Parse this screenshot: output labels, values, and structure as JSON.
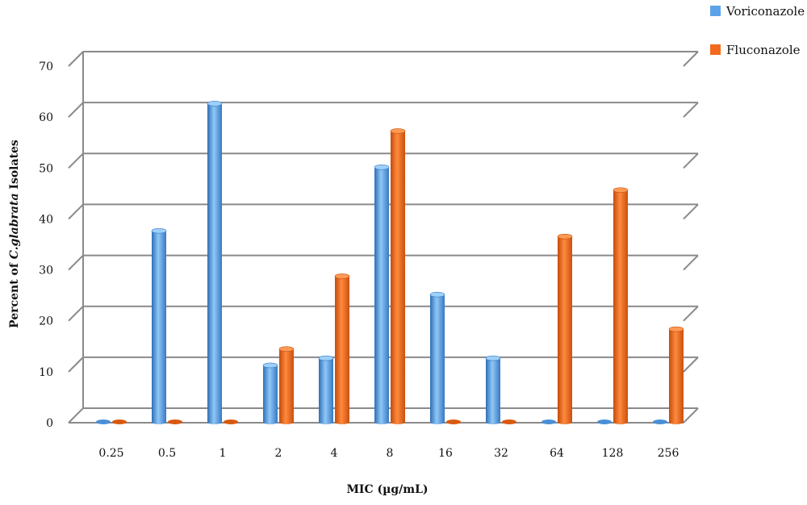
{
  "chart_data": {
    "type": "bar",
    "title": "",
    "xlabel": "MIC (µg/mL)",
    "ylabel_prefix": "Percent of ",
    "ylabel_italic": "C.glabrata",
    "ylabel_suffix": " Isolates",
    "ylim": [
      0,
      70
    ],
    "yticks": [
      "0",
      "10",
      "20",
      "30",
      "40",
      "50",
      "60",
      "70"
    ],
    "categories": [
      "0.25",
      "0.5",
      "1",
      "2",
      "4",
      "8",
      "16",
      "32",
      "64",
      "128",
      "256"
    ],
    "grid": true,
    "legend_position": "top-right",
    "series": [
      {
        "name": "Voriconazole",
        "color": "#5BA3E8",
        "values": [
          0,
          37.5,
          62.5,
          11.1,
          12.5,
          50,
          25,
          12.5,
          0,
          0,
          0
        ]
      },
      {
        "name": "Fluconazole",
        "color": "#F26A1B",
        "values": [
          0,
          0,
          0,
          14.3,
          28.6,
          57.1,
          0,
          0,
          36.4,
          45.5,
          18.2
        ]
      }
    ]
  }
}
